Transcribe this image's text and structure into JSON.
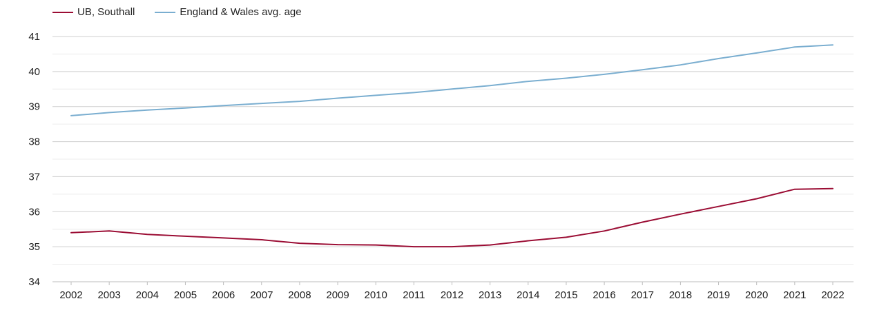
{
  "chart_data": {
    "type": "line",
    "x": [
      "2002",
      "2003",
      "2004",
      "2005",
      "2006",
      "2007",
      "2008",
      "2009",
      "2010",
      "2011",
      "2012",
      "2013",
      "2014",
      "2015",
      "2016",
      "2017",
      "2018",
      "2019",
      "2020",
      "2021",
      "2022"
    ],
    "series": [
      {
        "name": "UB, Southall",
        "color": "#9b0d34",
        "values": [
          35.4,
          35.45,
          35.35,
          35.3,
          35.25,
          35.2,
          35.1,
          35.06,
          35.05,
          35.0,
          35.0,
          35.05,
          35.17,
          35.27,
          35.45,
          35.7,
          35.93,
          36.15,
          36.37,
          36.64,
          36.66
        ]
      },
      {
        "name": "England & Wales avg. age",
        "color": "#7aaed0",
        "values": [
          38.74,
          38.83,
          38.9,
          38.96,
          39.03,
          39.09,
          39.15,
          39.24,
          39.32,
          39.4,
          39.5,
          39.6,
          39.72,
          39.81,
          39.92,
          40.05,
          40.19,
          40.37,
          40.53,
          40.7,
          40.76
        ]
      }
    ],
    "y_ticks": [
      "34",
      "35",
      "36",
      "37",
      "38",
      "39",
      "40",
      "41"
    ],
    "ylim": [
      34,
      41
    ],
    "grid": true,
    "minor_grid": true,
    "legend_position": "top-left",
    "title": "",
    "xlabel": "",
    "ylabel": ""
  }
}
